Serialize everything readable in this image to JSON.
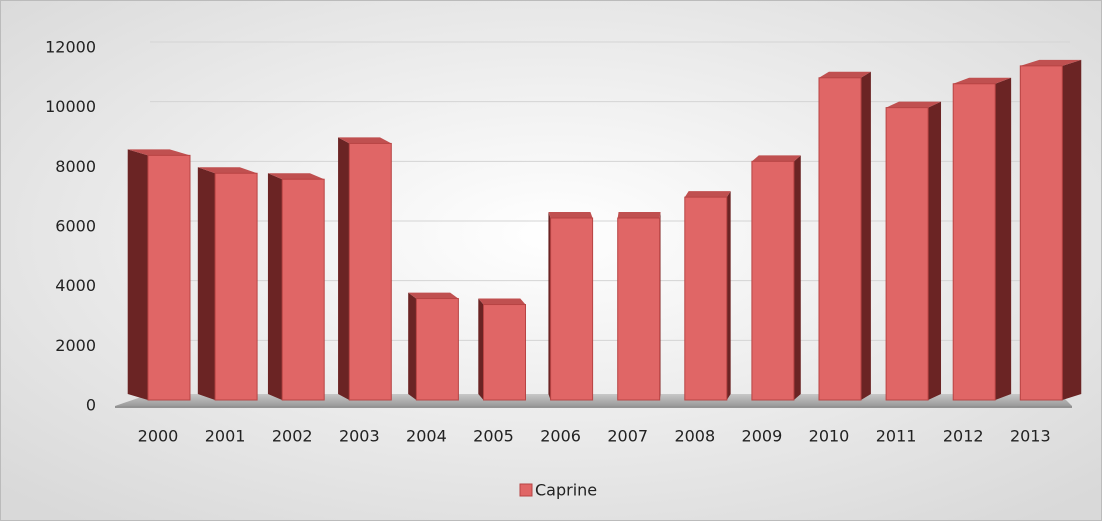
{
  "chart_data": {
    "type": "bar",
    "categories": [
      "2000",
      "2001",
      "2002",
      "2003",
      "2004",
      "2005",
      "2006",
      "2007",
      "2008",
      "2009",
      "2010",
      "2011",
      "2012",
      "2013"
    ],
    "series": [
      {
        "name": "Caprine",
        "color": "#e06666",
        "values": [
          8200,
          7600,
          7400,
          8600,
          3400,
          3200,
          6100,
          6100,
          6800,
          8000,
          10800,
          9800,
          10600,
          11200
        ]
      }
    ],
    "ylim": [
      0,
      12000
    ],
    "yticks": [
      0,
      2000,
      4000,
      6000,
      8000,
      10000,
      12000
    ],
    "grid": true,
    "legend": "bottom"
  }
}
